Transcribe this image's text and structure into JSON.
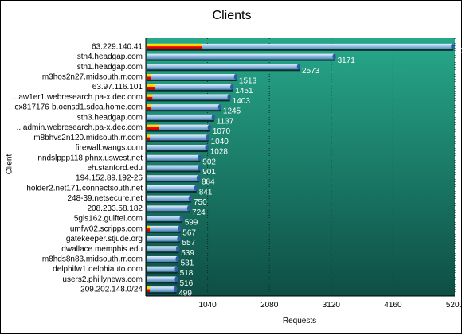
{
  "chart_data": {
    "type": "bar",
    "orientation": "horizontal",
    "title": "Clients",
    "xlabel": "Requests",
    "ylabel": "Client",
    "xlim": [
      0,
      5200
    ],
    "xticks": [
      1040,
      2080,
      3120,
      4160,
      5200
    ],
    "grid": true,
    "categories": [
      "63.229.140.41",
      "stn4.headgap.com",
      "stn1.headgap.com",
      "m3hos2n27.midsouth.rr.com",
      "63.97.116.101",
      "...aw1er1.webresearch.pa-x.dec.com",
      "cx817176-b.ocnsd1.sdca.home.com",
      "stn3.headgap.com",
      "...admin.webresearch.pa-x.dec.com",
      "m8bhvs2n120.midsouth.rr.com",
      "firewall.wangs.com",
      "nndslppp118.phnx.uswest.net",
      "eh.stanford.edu",
      "194.152.89.192-26",
      "holder2.net171.connectsouth.net",
      "248-39.netsecure.net",
      "208.233.58.182",
      "5gis162.gulftel.com",
      "umfw02.scripps.com",
      "gatekeeper.stjude.org",
      "dwallace.memphis.edu",
      "m8hds8n83.midsouth.rr.com",
      "delphifw1.delphiauto.com",
      "users2.phillynews.com",
      "209.202.148.0/24"
    ],
    "values": [
      5165,
      3171,
      2573,
      1513,
      1451,
      1403,
      1245,
      1137,
      1070,
      1040,
      1028,
      902,
      901,
      884,
      841,
      750,
      724,
      599,
      567,
      557,
      539,
      531,
      518,
      516,
      499
    ],
    "series_colors": {
      "bar": "#9ec5e6",
      "highlight": "#ff0000",
      "accent": "#ffd400",
      "plot_background_top": "#27a88a",
      "plot_background_bottom": "#0e4e45"
    }
  }
}
